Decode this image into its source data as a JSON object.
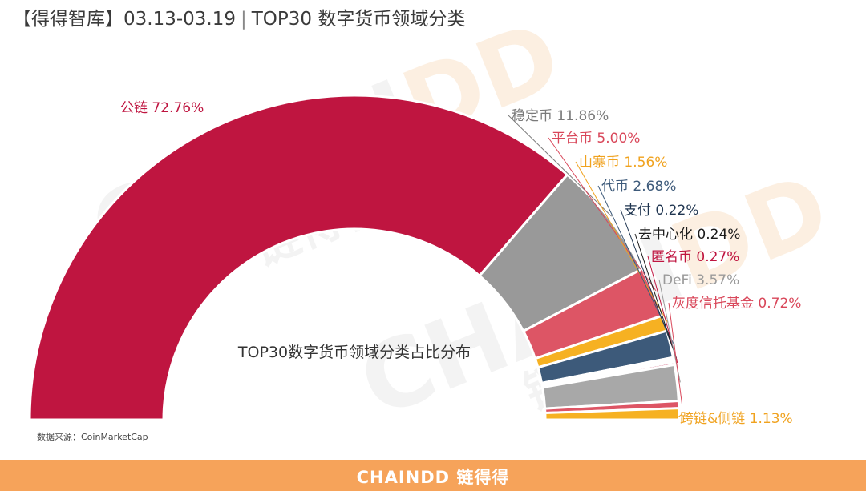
{
  "header": {
    "title_brand": "【得得智库】",
    "title_date": "03.13-03.19",
    "title_sep": "|",
    "title_text": "TOP30 数字货币领域分类"
  },
  "watermark": {
    "brand_main": "CHAIN",
    "brand_dd": "DD",
    "brand_cn": "链得得"
  },
  "chart_data": {
    "type": "pie",
    "style": "half-donut",
    "center_label": "TOP30数字货币领域分类占比分布",
    "slices": [
      {
        "name": "公链",
        "value": 72.76,
        "label": "公链 72.76%",
        "color": "#bf1540",
        "label_color": "#bf1540"
      },
      {
        "name": "稳定币",
        "value": 11.86,
        "label": "稳定币 11.86%",
        "color": "#999999",
        "label_color": "#7a7a7a"
      },
      {
        "name": "平台币",
        "value": 5.0,
        "label": "平台币 5.00%",
        "color": "#dd5565",
        "label_color": "#d9475a"
      },
      {
        "name": "山寨币",
        "value": 1.56,
        "label": "山寨币 1.56%",
        "color": "#f6b122",
        "label_color": "#f0a21e"
      },
      {
        "name": "代币",
        "value": 2.68,
        "label": "代币 2.68%",
        "color": "#3d5a7a",
        "label_color": "#3d5a7a"
      },
      {
        "name": "支付",
        "value": 0.22,
        "label": "支付 0.22%",
        "color": "#1f3550",
        "label_color": "#1f3550"
      },
      {
        "name": "去中心化",
        "value": 0.24,
        "label": "去中心化 0.24%",
        "color": "#1a1a1a",
        "label_color": "#1a1a1a"
      },
      {
        "name": "匿名币",
        "value": 0.27,
        "label": "匿名币 0.27%",
        "color": "#bf1540",
        "label_color": "#bf1540"
      },
      {
        "name": "DeFi",
        "value": 3.57,
        "label": "DeFi 3.57%",
        "color": "#a8a8a8",
        "label_color": "#9a9a9a"
      },
      {
        "name": "灰度信托基金",
        "value": 0.72,
        "label": "灰度信托基金 0.72%",
        "color": "#dd5565",
        "label_color": "#d9475a"
      },
      {
        "name": "跨链&侧链",
        "value": 1.13,
        "label": "跨链&侧链 1.13%",
        "color": "#f6b122",
        "label_color": "#f0a21e"
      }
    ]
  },
  "source": "数据来源：CoinMarketCap",
  "footer": {
    "logo_text": "CHAINDD 链得得",
    "color": "#f6a35a"
  }
}
